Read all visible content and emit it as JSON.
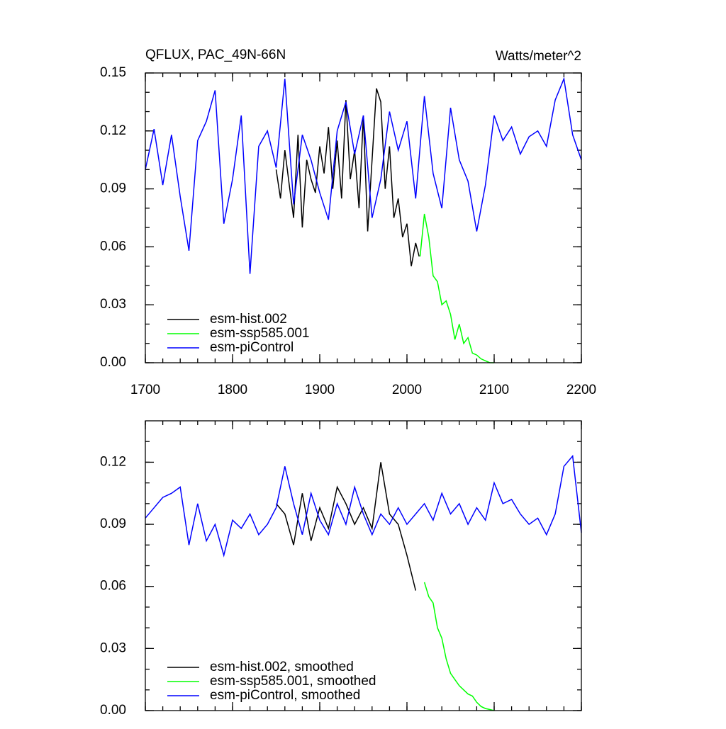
{
  "chart_data": [
    {
      "type": "line",
      "title": "QFLUX, PAC_49N-66N",
      "units": "Watts/meter^2",
      "xlim": [
        1700,
        2200
      ],
      "xticks": [
        1700,
        1800,
        1900,
        2000,
        2100,
        2200
      ],
      "ylim": [
        0,
        0.15
      ],
      "yticks": [
        {
          "value": 0,
          "label": "0.00"
        },
        0.03,
        0.06,
        0.09,
        0.12,
        0.15
      ],
      "series": [
        {
          "name": "esm-hist.002",
          "color": "#000000",
          "x": [
            1850,
            1855,
            1860,
            1865,
            1870,
            1875,
            1880,
            1885,
            1890,
            1895,
            1900,
            1905,
            1910,
            1915,
            1920,
            1925,
            1930,
            1935,
            1940,
            1945,
            1950,
            1955,
            1960,
            1965,
            1970,
            1975,
            1980,
            1985,
            1990,
            1995,
            2000,
            2005,
            2010,
            2014
          ],
          "values": [
            0.1,
            0.085,
            0.11,
            0.092,
            0.075,
            0.118,
            0.07,
            0.105,
            0.095,
            0.088,
            0.112,
            0.098,
            0.122,
            0.09,
            0.115,
            0.085,
            0.136,
            0.095,
            0.11,
            0.08,
            0.128,
            0.068,
            0.105,
            0.142,
            0.135,
            0.09,
            0.112,
            0.075,
            0.085,
            0.065,
            0.072,
            0.05,
            0.062,
            0.055
          ]
        },
        {
          "name": "esm-ssp585.001",
          "color": "#00ff00",
          "x": [
            2015,
            2020,
            2025,
            2030,
            2035,
            2040,
            2045,
            2050,
            2055,
            2060,
            2065,
            2070,
            2075,
            2080,
            2085,
            2090,
            2095,
            2100
          ],
          "values": [
            0.055,
            0.077,
            0.065,
            0.045,
            0.042,
            0.03,
            0.032,
            0.025,
            0.012,
            0.02,
            0.01,
            0.013,
            0.005,
            0.004,
            0.002,
            0.001,
            0.0,
            0.0
          ]
        },
        {
          "name": "esm-piControl",
          "color": "#0000ff",
          "x": [
            1700,
            1710,
            1720,
            1730,
            1740,
            1750,
            1760,
            1770,
            1780,
            1790,
            1800,
            1810,
            1820,
            1830,
            1840,
            1850,
            1860,
            1870,
            1880,
            1890,
            1900,
            1910,
            1920,
            1930,
            1940,
            1950,
            1960,
            1970,
            1980,
            1990,
            2000,
            2010,
            2020,
            2030,
            2040,
            2050,
            2060,
            2070,
            2080,
            2090,
            2100,
            2110,
            2120,
            2130,
            2140,
            2150,
            2160,
            2170,
            2180,
            2190,
            2200
          ],
          "values": [
            0.1,
            0.121,
            0.092,
            0.118,
            0.086,
            0.058,
            0.115,
            0.125,
            0.141,
            0.072,
            0.095,
            0.128,
            0.046,
            0.112,
            0.12,
            0.101,
            0.147,
            0.082,
            0.118,
            0.105,
            0.088,
            0.074,
            0.12,
            0.135,
            0.108,
            0.128,
            0.075,
            0.095,
            0.13,
            0.11,
            0.125,
            0.085,
            0.138,
            0.098,
            0.08,
            0.132,
            0.105,
            0.094,
            0.068,
            0.092,
            0.128,
            0.115,
            0.122,
            0.108,
            0.117,
            0.12,
            0.112,
            0.136,
            0.147,
            0.118,
            0.105
          ]
        }
      ]
    },
    {
      "type": "line",
      "xlim": [
        1700,
        2200
      ],
      "xticks": [
        1700,
        1800,
        1900,
        2000,
        2100,
        2200
      ],
      "ylim": [
        0,
        0.14
      ],
      "yticks": [
        {
          "value": 0,
          "label": "0.00"
        },
        0.03,
        0.06,
        0.09,
        0.12
      ],
      "series": [
        {
          "name": "esm-hist.002, smoothed",
          "color": "#000000",
          "x": [
            1850,
            1860,
            1870,
            1880,
            1890,
            1900,
            1910,
            1920,
            1930,
            1940,
            1950,
            1960,
            1970,
            1980,
            1990,
            2000,
            2010
          ],
          "values": [
            0.1,
            0.095,
            0.08,
            0.105,
            0.082,
            0.098,
            0.088,
            0.108,
            0.1,
            0.09,
            0.098,
            0.088,
            0.12,
            0.095,
            0.09,
            0.075,
            0.058
          ]
        },
        {
          "name": "esm-ssp585.001, smoothed",
          "color": "#00ff00",
          "x": [
            2020,
            2025,
            2030,
            2035,
            2040,
            2045,
            2050,
            2055,
            2060,
            2065,
            2070,
            2075,
            2080,
            2085,
            2090,
            2095,
            2100
          ],
          "values": [
            0.062,
            0.055,
            0.052,
            0.04,
            0.035,
            0.025,
            0.018,
            0.015,
            0.012,
            0.01,
            0.008,
            0.007,
            0.004,
            0.002,
            0.001,
            0.0005,
            0.0
          ]
        },
        {
          "name": "esm-piControl, smoothed",
          "color": "#0000ff",
          "x": [
            1700,
            1710,
            1720,
            1730,
            1740,
            1750,
            1760,
            1770,
            1780,
            1790,
            1800,
            1810,
            1820,
            1830,
            1840,
            1850,
            1860,
            1870,
            1880,
            1890,
            1900,
            1910,
            1920,
            1930,
            1940,
            1950,
            1960,
            1970,
            1980,
            1990,
            2000,
            2010,
            2020,
            2030,
            2040,
            2050,
            2060,
            2070,
            2080,
            2090,
            2100,
            2110,
            2120,
            2130,
            2140,
            2150,
            2160,
            2170,
            2180,
            2190,
            2200
          ],
          "values": [
            0.093,
            0.098,
            0.103,
            0.105,
            0.108,
            0.08,
            0.1,
            0.082,
            0.09,
            0.075,
            0.092,
            0.088,
            0.095,
            0.085,
            0.09,
            0.098,
            0.118,
            0.1,
            0.085,
            0.105,
            0.092,
            0.085,
            0.1,
            0.09,
            0.108,
            0.095,
            0.085,
            0.095,
            0.09,
            0.098,
            0.09,
            0.095,
            0.1,
            0.092,
            0.105,
            0.095,
            0.1,
            0.09,
            0.098,
            0.092,
            0.11,
            0.1,
            0.102,
            0.095,
            0.09,
            0.093,
            0.085,
            0.095,
            0.118,
            0.123,
            0.086
          ]
        }
      ]
    }
  ]
}
